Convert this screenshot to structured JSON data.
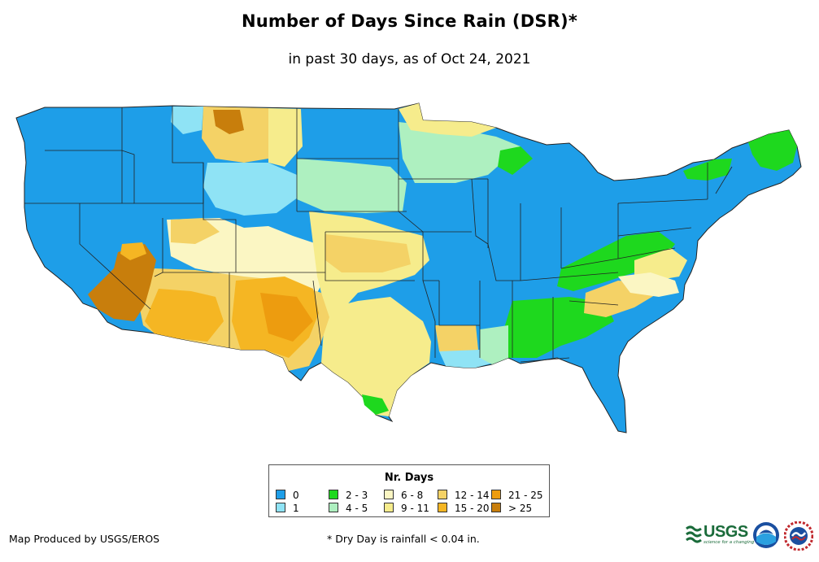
{
  "title": "Number of Days Since Rain (DSR)*",
  "subtitle": "in past 30 days, as of Oct 24, 2021",
  "legend": {
    "title": "Nr. Days",
    "items": [
      {
        "label": "0",
        "color": "#1e9ee8"
      },
      {
        "label": "1",
        "color": "#8fe3f5"
      },
      {
        "label": "2 - 3",
        "color": "#1ed81e"
      },
      {
        "label": "4 - 5",
        "color": "#aef0c0"
      },
      {
        "label": "6 - 8",
        "color": "#fbf6c3"
      },
      {
        "label": "9 - 11",
        "color": "#f6ec8c"
      },
      {
        "label": "12 - 14",
        "color": "#f4d266"
      },
      {
        "label": "15 - 20",
        "color": "#f5b623"
      },
      {
        "label": "21 - 25",
        "color": "#ed9c0f"
      },
      {
        "label": "> 25",
        "color": "#c87e0c"
      }
    ]
  },
  "footer": {
    "producer": "Map Produced by USGS/EROS",
    "note": "* Dry Day is rainfall < 0.04 in."
  },
  "logos": {
    "usgs_text": "USGS",
    "usgs_tagline": "science for a changing world",
    "noaa_text": "NOAA",
    "nws_text": "NWS"
  }
}
